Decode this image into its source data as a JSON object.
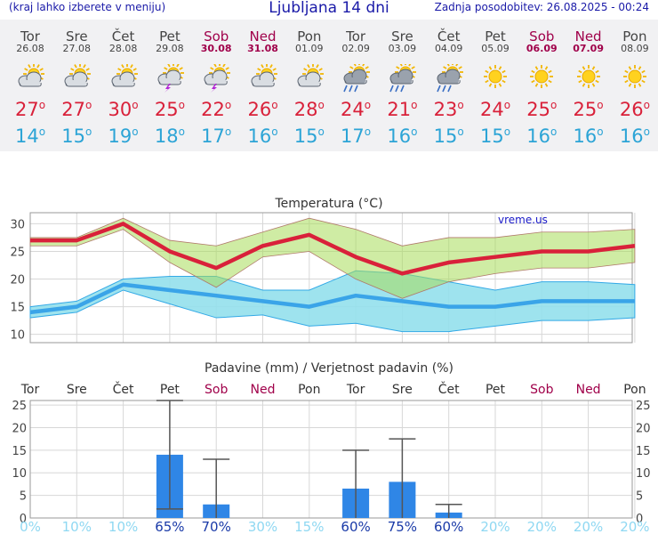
{
  "header": {
    "menu_hint": "(kraj lahko izberete v meniju)",
    "title": "Ljubljana 14 dni",
    "updated": "Zadnja posodobitev: 26.08.2025 - 00:24"
  },
  "colors": {
    "max_temp": "#d9213a",
    "min_temp": "#2ca4d6",
    "weekend": "#a0004a",
    "precip_bar": "#2f86e6",
    "max_band": "#cfe89a",
    "min_band": "#94e0ec"
  },
  "days": [
    {
      "name": "Tor",
      "date": "26.08",
      "weekend": false,
      "icon": "partly-cloudy-icon",
      "max": "27",
      "min": "14"
    },
    {
      "name": "Sre",
      "date": "27.08",
      "weekend": false,
      "icon": "partly-cloudy-icon",
      "max": "27",
      "min": "15"
    },
    {
      "name": "Čet",
      "date": "28.08",
      "weekend": false,
      "icon": "partly-cloudy-icon",
      "max": "30",
      "min": "19"
    },
    {
      "name": "Pet",
      "date": "29.08",
      "weekend": false,
      "icon": "thunderstorm-icon",
      "max": "25",
      "min": "18"
    },
    {
      "name": "Sob",
      "date": "30.08",
      "weekend": true,
      "icon": "thunderstorm-icon",
      "max": "22",
      "min": "17"
    },
    {
      "name": "Ned",
      "date": "31.08",
      "weekend": true,
      "icon": "partly-cloudy-icon",
      "max": "26",
      "min": "16"
    },
    {
      "name": "Pon",
      "date": "01.09",
      "weekend": false,
      "icon": "partly-cloudy-icon",
      "max": "28",
      "min": "15"
    },
    {
      "name": "Tor",
      "date": "02.09",
      "weekend": false,
      "icon": "rain-shower-icon",
      "max": "24",
      "min": "17"
    },
    {
      "name": "Sre",
      "date": "03.09",
      "weekend": false,
      "icon": "rain-shower-icon",
      "max": "21",
      "min": "16"
    },
    {
      "name": "Čet",
      "date": "04.09",
      "weekend": false,
      "icon": "rain-shower-icon",
      "max": "23",
      "min": "15"
    },
    {
      "name": "Pet",
      "date": "05.09",
      "weekend": false,
      "icon": "sunny-icon",
      "max": "24",
      "min": "15"
    },
    {
      "name": "Sob",
      "date": "06.09",
      "weekend": true,
      "icon": "sunny-icon",
      "max": "25",
      "min": "16"
    },
    {
      "name": "Ned",
      "date": "07.09",
      "weekend": true,
      "icon": "sunny-icon",
      "max": "25",
      "min": "16"
    },
    {
      "name": "Pon",
      "date": "08.09",
      "weekend": false,
      "icon": "sunny-icon",
      "max": "26",
      "min": "16"
    }
  ],
  "chart_data": [
    {
      "type": "line",
      "title": "Temperatura (°C)",
      "watermark": "vreme.us",
      "ylim": [
        8.5,
        32
      ],
      "yticks": [
        10,
        15,
        20,
        25,
        30
      ],
      "grid": true,
      "x": [
        1,
        2,
        3,
        4,
        5,
        6,
        7,
        8,
        9,
        10,
        11,
        12,
        13,
        14
      ],
      "series": [
        {
          "values": [
            27,
            27,
            30,
            25,
            22,
            26,
            28,
            24,
            21,
            23,
            24,
            25,
            25,
            26
          ]
        },
        {
          "values": [
            14,
            15,
            19,
            18,
            17,
            16,
            15,
            17,
            16,
            15,
            15,
            16,
            16,
            16
          ]
        }
      ],
      "bands": [
        {
          "upper": [
            27.5,
            27.5,
            31,
            27,
            26,
            28.5,
            31,
            29,
            26,
            27.5,
            27.5,
            28.5,
            28.5,
            29
          ],
          "lower": [
            26,
            26,
            29,
            23,
            18.5,
            24,
            25,
            20,
            16.5,
            19.5,
            21,
            22,
            22,
            23
          ]
        },
        {
          "upper": [
            15,
            16,
            20,
            20.5,
            20.5,
            18,
            18,
            21.5,
            21,
            19.5,
            18,
            19.5,
            19.5,
            19
          ],
          "lower": [
            13,
            14,
            18,
            15.5,
            13,
            13.5,
            11.5,
            12,
            10.5,
            10.5,
            11.5,
            12.5,
            12.5,
            13
          ]
        }
      ]
    },
    {
      "type": "bar",
      "title": "Padavine (mm) / Verjetnost padavin (%)",
      "categories": [
        "Tor",
        "Sre",
        "Čet",
        "Pet",
        "Sob",
        "Ned",
        "Pon",
        "Tor",
        "Sre",
        "Čet",
        "Pet",
        "Sob",
        "Ned",
        "Pon"
      ],
      "values": [
        0,
        0,
        0,
        14,
        3,
        0,
        0,
        6.5,
        8,
        1.2,
        0,
        0,
        0,
        0
      ],
      "ranges": [
        null,
        null,
        null,
        [
          2,
          26
        ],
        [
          0,
          13
        ],
        null,
        null,
        [
          0,
          15
        ],
        [
          0,
          17.5
        ],
        [
          0,
          3
        ],
        null,
        null,
        null,
        null
      ],
      "probabilities": [
        "0%",
        "10%",
        "10%",
        "65%",
        "70%",
        "30%",
        "15%",
        "60%",
        "75%",
        "60%",
        "20%",
        "20%",
        "20%",
        "20%"
      ],
      "ylim": [
        0,
        26
      ],
      "yticks": [
        0,
        5,
        10,
        15,
        20,
        25
      ],
      "grid": true
    }
  ]
}
